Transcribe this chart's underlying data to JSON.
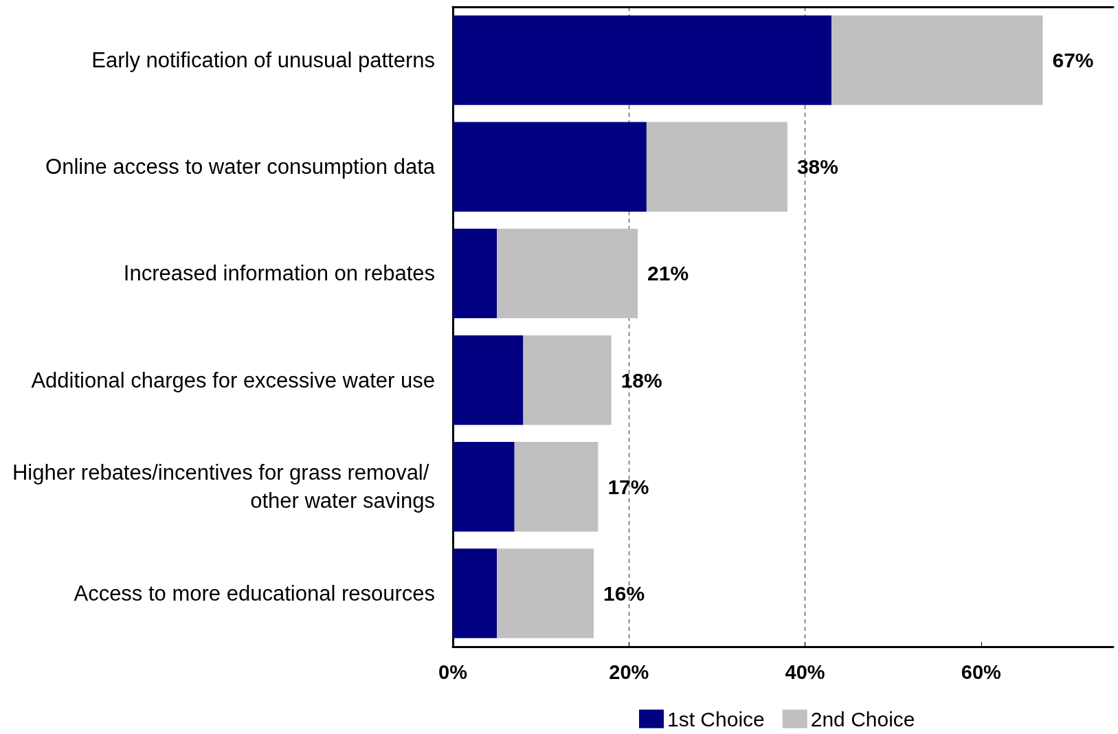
{
  "chart_data": {
    "type": "bar",
    "orientation": "horizontal",
    "stacked": true,
    "categories": [
      "Early notification of unusual patterns",
      "Online access to water consumption data",
      "Increased information on rebates",
      "Additional charges for excessive water use",
      "Higher rebates/incentives for grass removal/ other water savings",
      "Access to more educational resources"
    ],
    "series": [
      {
        "name": "1st Choice",
        "color": "#000080",
        "values": [
          43,
          22,
          5,
          8,
          7,
          5
        ]
      },
      {
        "name": "2nd Choice",
        "color": "#c0c0c0",
        "values": [
          24,
          16,
          16,
          10,
          9.5,
          11
        ]
      }
    ],
    "totals": [
      "67%",
      "38%",
      "21%",
      "18%",
      "17%",
      "16%"
    ],
    "xlim": [
      0,
      75
    ],
    "xticks": [
      {
        "value": 0,
        "label": "0%"
      },
      {
        "value": 20,
        "label": "20%"
      },
      {
        "value": 40,
        "label": "40%"
      },
      {
        "value": 60,
        "label": "60%"
      }
    ],
    "grid": "x",
    "legend": "bottom"
  }
}
